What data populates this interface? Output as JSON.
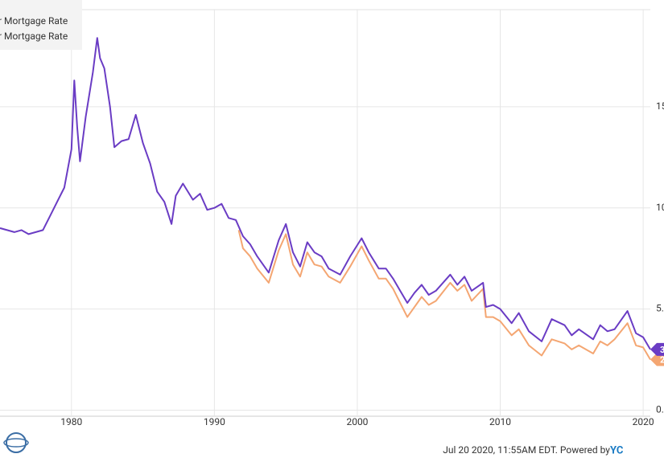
{
  "chart_data": {
    "type": "line",
    "xlim": [
      1975,
      2020.5
    ],
    "xticks": [
      1980,
      1990,
      2000,
      2010,
      2020
    ],
    "ylim": [
      -0.3,
      19.8
    ],
    "yticks": [
      {
        "value": 0,
        "label": "0."
      },
      {
        "value": 5,
        "label": "5."
      },
      10,
      15
    ],
    "grid": true,
    "legend": "top-left",
    "series": [
      {
        "name": "r Mortgage Rate",
        "color": "#6a3cc4",
        "end_label": "3",
        "x": [
          1975.0,
          1975.5,
          1976.0,
          1976.5,
          1977.0,
          1977.5,
          1978.0,
          1978.5,
          1979.0,
          1979.5,
          1980.0,
          1980.2,
          1980.4,
          1980.6,
          1981.0,
          1981.5,
          1981.8,
          1982.0,
          1982.3,
          1982.7,
          1983.0,
          1983.5,
          1984.0,
          1984.5,
          1985.0,
          1985.5,
          1986.0,
          1986.5,
          1987.0,
          1987.3,
          1987.8,
          1988.5,
          1989.0,
          1989.5,
          1990.0,
          1990.5,
          1991.0,
          1991.5,
          1992.0,
          1992.5,
          1993.0,
          1993.8,
          1994.5,
          1995.0,
          1995.5,
          1996.0,
          1996.5,
          1997.0,
          1997.5,
          1998.0,
          1998.8,
          1999.5,
          2000.3,
          2000.8,
          2001.5,
          2002.0,
          2002.5,
          2003.0,
          2003.5,
          2004.0,
          2004.5,
          2005.0,
          2005.5,
          2006.5,
          2007.0,
          2007.5,
          2008.0,
          2008.8,
          2009.0,
          2009.5,
          2010.0,
          2010.8,
          2011.3,
          2012.0,
          2012.9,
          2013.6,
          2014.5,
          2015.0,
          2015.5,
          2016.5,
          2017.0,
          2017.5,
          2018.0,
          2018.9,
          2019.5,
          2020.0,
          2020.5
        ],
        "values": [
          9.0,
          8.9,
          8.8,
          8.9,
          8.7,
          8.8,
          8.9,
          9.6,
          10.3,
          11.0,
          12.9,
          16.3,
          14.0,
          12.3,
          14.5,
          16.7,
          18.4,
          17.4,
          16.9,
          15.0,
          13.0,
          13.3,
          13.4,
          14.6,
          13.2,
          12.2,
          10.8,
          10.3,
          9.2,
          10.6,
          11.2,
          10.4,
          10.7,
          9.9,
          10.0,
          10.2,
          9.5,
          9.4,
          8.6,
          8.2,
          7.6,
          6.8,
          8.4,
          9.2,
          7.8,
          7.1,
          8.3,
          7.8,
          7.6,
          7.0,
          6.7,
          7.6,
          8.5,
          7.8,
          7.0,
          7.0,
          6.5,
          5.9,
          5.3,
          5.8,
          6.2,
          5.7,
          5.9,
          6.7,
          6.2,
          6.6,
          5.9,
          6.3,
          5.1,
          5.2,
          5.0,
          4.3,
          4.8,
          3.9,
          3.4,
          4.5,
          4.2,
          3.7,
          4.0,
          3.5,
          4.2,
          3.9,
          4.0,
          4.9,
          3.8,
          3.6,
          3.0
        ]
      },
      {
        "name": "r Mortgage Rate",
        "color": "#f4a672",
        "end_label": "2",
        "x": [
          1991.7,
          1992.0,
          1992.5,
          1993.0,
          1993.8,
          1994.5,
          1995.0,
          1995.5,
          1996.0,
          1996.5,
          1997.0,
          1997.5,
          1998.0,
          1998.8,
          1999.5,
          2000.3,
          2000.8,
          2001.5,
          2002.0,
          2002.5,
          2003.0,
          2003.5,
          2004.0,
          2004.5,
          2005.0,
          2005.5,
          2006.5,
          2007.0,
          2007.5,
          2008.0,
          2008.8,
          2009.0,
          2009.5,
          2010.0,
          2010.8,
          2011.3,
          2012.0,
          2012.9,
          2013.6,
          2014.5,
          2015.0,
          2015.5,
          2016.5,
          2017.0,
          2017.5,
          2018.0,
          2018.9,
          2019.5,
          2020.0,
          2020.5
        ],
        "values": [
          8.9,
          8.0,
          7.6,
          7.0,
          6.3,
          7.9,
          8.7,
          7.2,
          6.6,
          7.8,
          7.2,
          7.1,
          6.6,
          6.3,
          7.1,
          8.1,
          7.4,
          6.5,
          6.5,
          6.0,
          5.3,
          4.6,
          5.1,
          5.6,
          5.2,
          5.4,
          6.3,
          5.9,
          6.2,
          5.4,
          6.0,
          4.6,
          4.6,
          4.4,
          3.7,
          4.0,
          3.2,
          2.7,
          3.5,
          3.3,
          3.0,
          3.2,
          2.8,
          3.4,
          3.2,
          3.5,
          4.3,
          3.2,
          3.1,
          2.5
        ]
      }
    ]
  },
  "footer": {
    "timestamp": "Jul 20 2020, 11:55AM EDT. Powered by ",
    "brand": "YC"
  }
}
